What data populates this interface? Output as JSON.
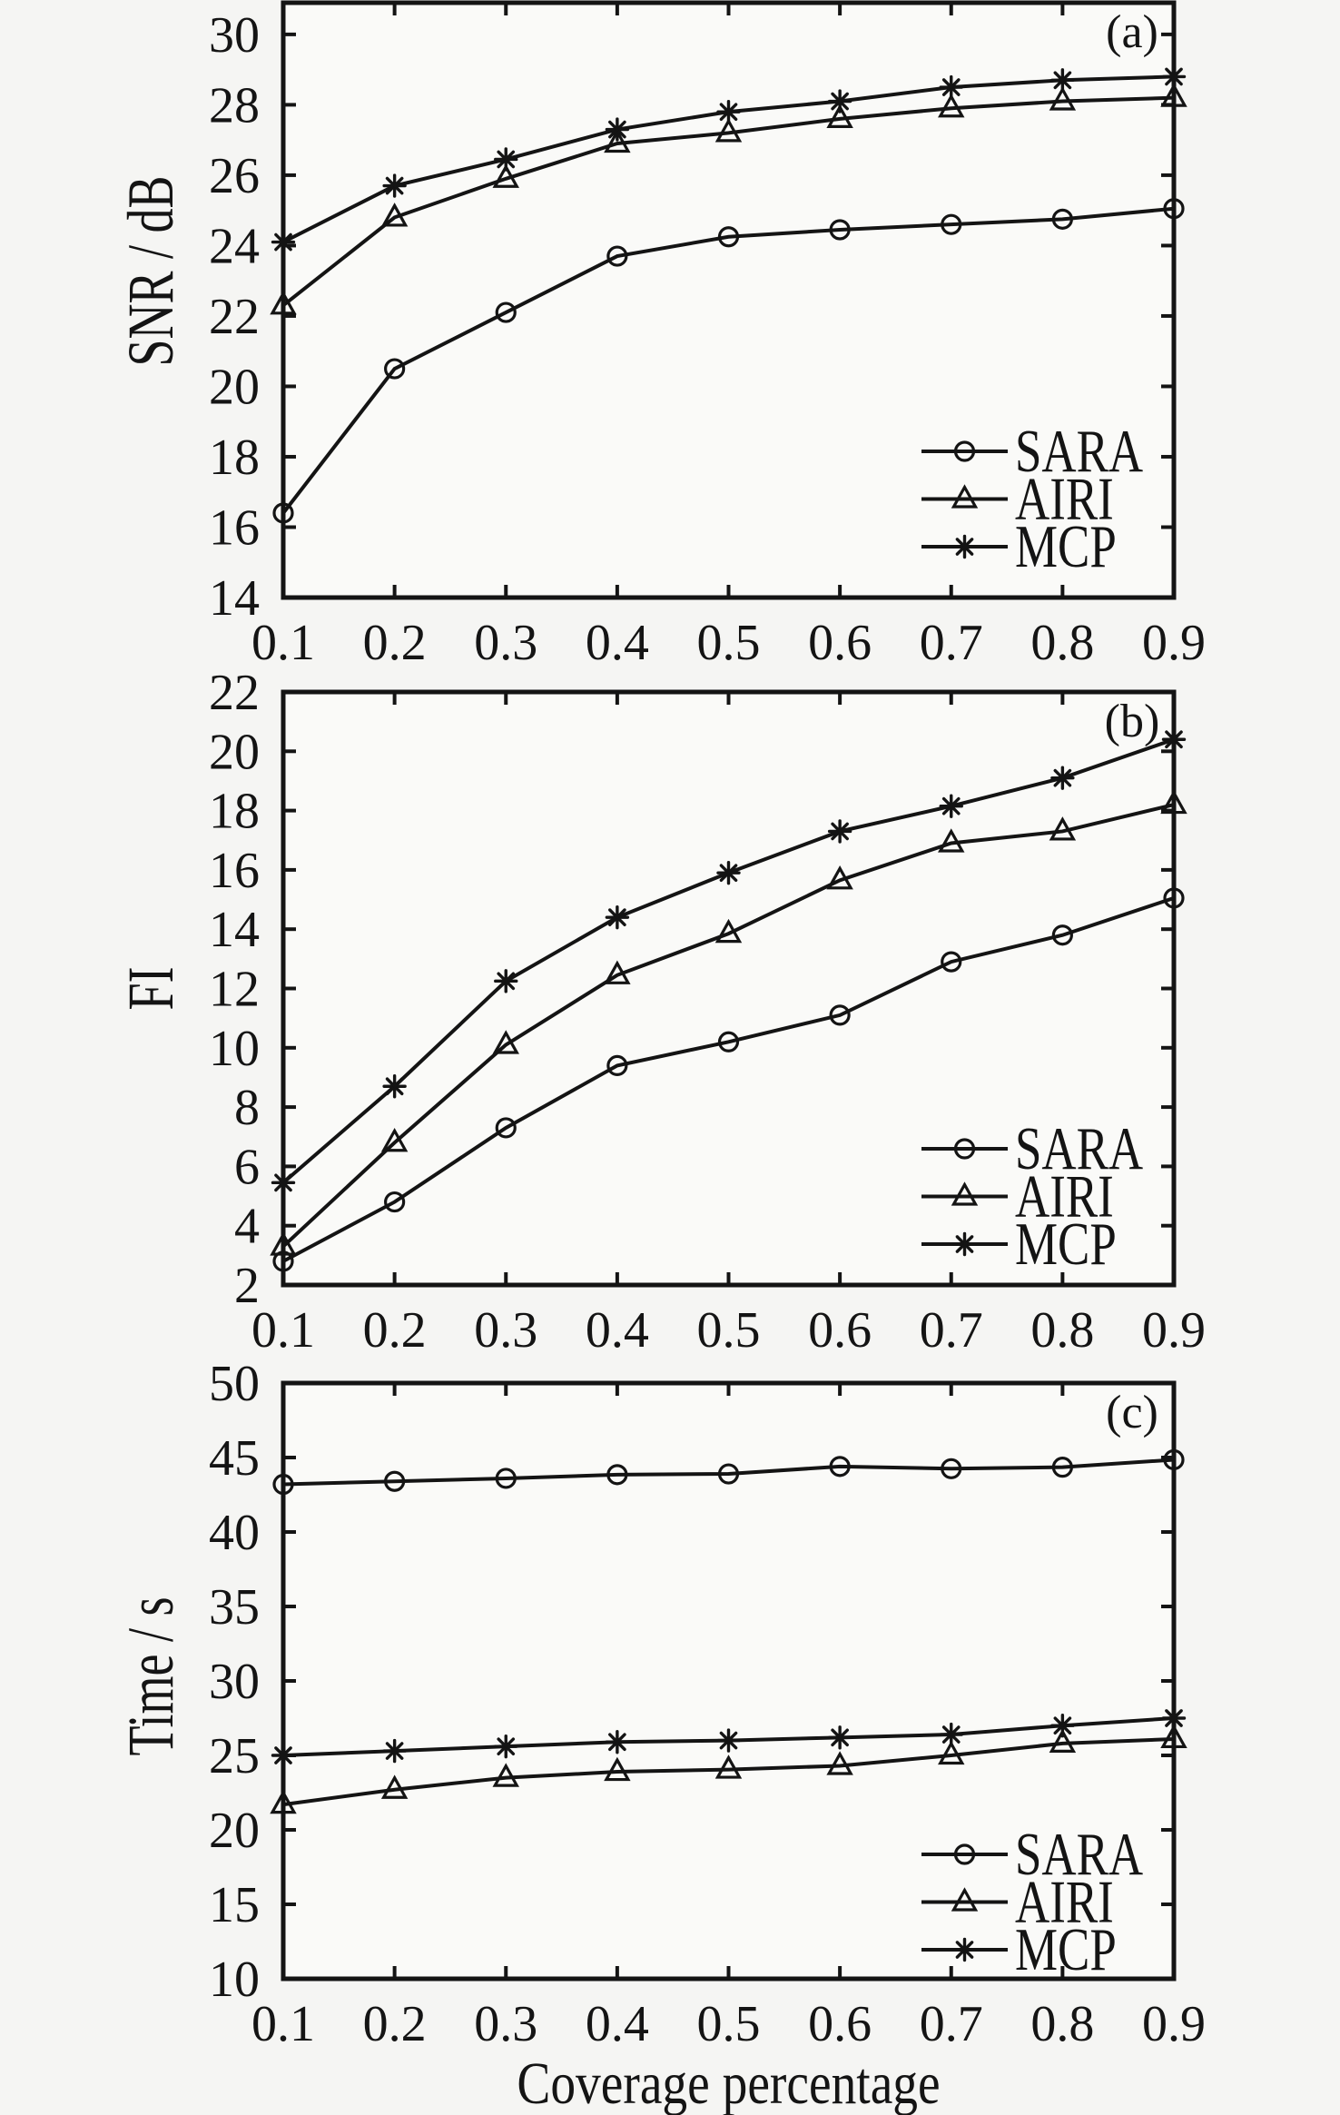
{
  "figure": {
    "xlabel": "Coverage percentage",
    "background": "#f5f5f3",
    "plot_background": "#fafaf8",
    "line_color": "#141414"
  },
  "chart_data": [
    {
      "type": "line",
      "corner_label": "(a)",
      "ylabel": "SNR / dB",
      "ylim": [
        14,
        30.9
      ],
      "yticks": [
        14,
        16,
        18,
        20,
        22,
        24,
        26,
        28,
        30
      ],
      "x": [
        0.1,
        0.2,
        0.3,
        0.4,
        0.5,
        0.6,
        0.7,
        0.8,
        0.9
      ],
      "xticklabels": [
        "0.1",
        "0.2",
        "0.3",
        "0.4",
        "0.5",
        "0.6",
        "0.7",
        "0.8",
        "0.9"
      ],
      "legend_position": "lower right",
      "series": [
        {
          "name": "SARA",
          "marker": "circle",
          "values": [
            16.4,
            20.5,
            22.1,
            23.7,
            24.25,
            24.45,
            24.6,
            24.75,
            25.05
          ]
        },
        {
          "name": "AIRI",
          "marker": "triangle",
          "values": [
            22.3,
            24.8,
            25.9,
            26.9,
            27.2,
            27.6,
            27.9,
            28.1,
            28.2
          ]
        },
        {
          "name": "MCP",
          "marker": "asterisk",
          "values": [
            24.1,
            25.7,
            26.45,
            27.3,
            27.8,
            28.1,
            28.5,
            28.7,
            28.8
          ]
        }
      ]
    },
    {
      "type": "line",
      "corner_label": "(b)",
      "ylabel": "FI",
      "ylim": [
        2,
        22
      ],
      "yticks": [
        2,
        4,
        6,
        8,
        10,
        12,
        14,
        16,
        18,
        20,
        22
      ],
      "x": [
        0.1,
        0.2,
        0.3,
        0.4,
        0.5,
        0.6,
        0.7,
        0.8,
        0.9
      ],
      "xticklabels": [
        "0.1",
        "0.2",
        "0.3",
        "0.4",
        "0.5",
        "0.6",
        "0.7",
        "0.8",
        "0.9"
      ],
      "legend_position": "lower right",
      "series": [
        {
          "name": "SARA",
          "marker": "circle",
          "values": [
            2.8,
            4.8,
            7.3,
            9.4,
            10.2,
            11.1,
            12.9,
            13.8,
            15.05
          ]
        },
        {
          "name": "AIRI",
          "marker": "triangle",
          "values": [
            3.3,
            6.8,
            10.1,
            12.45,
            13.85,
            15.65,
            16.9,
            17.3,
            18.2
          ]
        },
        {
          "name": "MCP",
          "marker": "asterisk",
          "values": [
            5.45,
            8.7,
            12.25,
            14.4,
            15.9,
            17.3,
            18.15,
            19.1,
            20.4
          ]
        }
      ]
    },
    {
      "type": "line",
      "corner_label": "(c)",
      "ylabel": "Time / s",
      "ylim": [
        10,
        50
      ],
      "yticks": [
        10,
        15,
        20,
        25,
        30,
        35,
        40,
        45,
        50
      ],
      "x": [
        0.1,
        0.2,
        0.3,
        0.4,
        0.5,
        0.6,
        0.7,
        0.8,
        0.9
      ],
      "xticklabels": [
        "0.1",
        "0.2",
        "0.3",
        "0.4",
        "0.5",
        "0.6",
        "0.7",
        "0.8",
        "0.9"
      ],
      "legend_position": "lower right",
      "series": [
        {
          "name": "SARA",
          "marker": "circle",
          "values": [
            43.2,
            43.4,
            43.6,
            43.85,
            43.9,
            44.4,
            44.25,
            44.35,
            44.85
          ]
        },
        {
          "name": "AIRI",
          "marker": "triangle",
          "values": [
            21.7,
            22.7,
            23.5,
            23.9,
            24.05,
            24.3,
            25.0,
            25.8,
            26.1
          ]
        },
        {
          "name": "MCP",
          "marker": "asterisk",
          "values": [
            25.0,
            25.3,
            25.6,
            25.9,
            26.0,
            26.2,
            26.4,
            27.0,
            27.5
          ]
        }
      ]
    }
  ]
}
